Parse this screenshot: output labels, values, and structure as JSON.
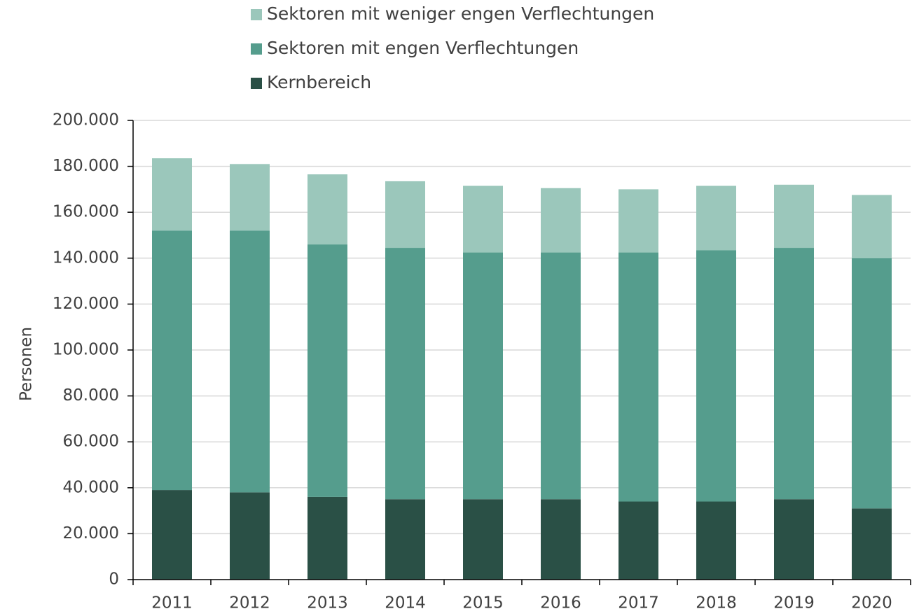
{
  "chart_data": {
    "type": "bar",
    "stacked": true,
    "y_label": "Personen",
    "categories": [
      "2011",
      "2012",
      "2013",
      "2014",
      "2015",
      "2016",
      "2017",
      "2018",
      "2019",
      "2020"
    ],
    "series": [
      {
        "name": "Kernbereich",
        "color": "#2a5046",
        "values": [
          39000,
          38000,
          36000,
          35000,
          35000,
          35000,
          34000,
          34000,
          35000,
          31000
        ]
      },
      {
        "name": "Sektoren mit engen Verflechtungen",
        "color": "#559d8d",
        "values": [
          113000,
          114000,
          110000,
          109500,
          107500,
          107500,
          108500,
          109500,
          109500,
          109000
        ]
      },
      {
        "name": "Sektoren mit weniger engen Verflechtungen",
        "color": "#9bc7bb",
        "values": [
          31500,
          29000,
          30500,
          29000,
          29000,
          28000,
          27500,
          28000,
          27500,
          27500
        ]
      }
    ],
    "ylim": [
      0,
      200000
    ],
    "yticks": [
      0,
      {
        "value": 20000,
        "label": "20.000"
      },
      {
        "value": 40000,
        "label": "40.000"
      },
      {
        "value": 60000,
        "label": "60.000"
      },
      {
        "value": 80000,
        "label": "80.000"
      },
      {
        "value": 100000,
        "label": "100.000"
      },
      {
        "value": 120000,
        "label": "120.000"
      },
      {
        "value": 140000,
        "label": "140.000"
      },
      {
        "value": 160000,
        "label": "160.000"
      },
      {
        "value": 180000,
        "label": "180.000"
      },
      {
        "value": 200000,
        "label": "200.000"
      }
    ],
    "grid": true,
    "legend": "top"
  }
}
